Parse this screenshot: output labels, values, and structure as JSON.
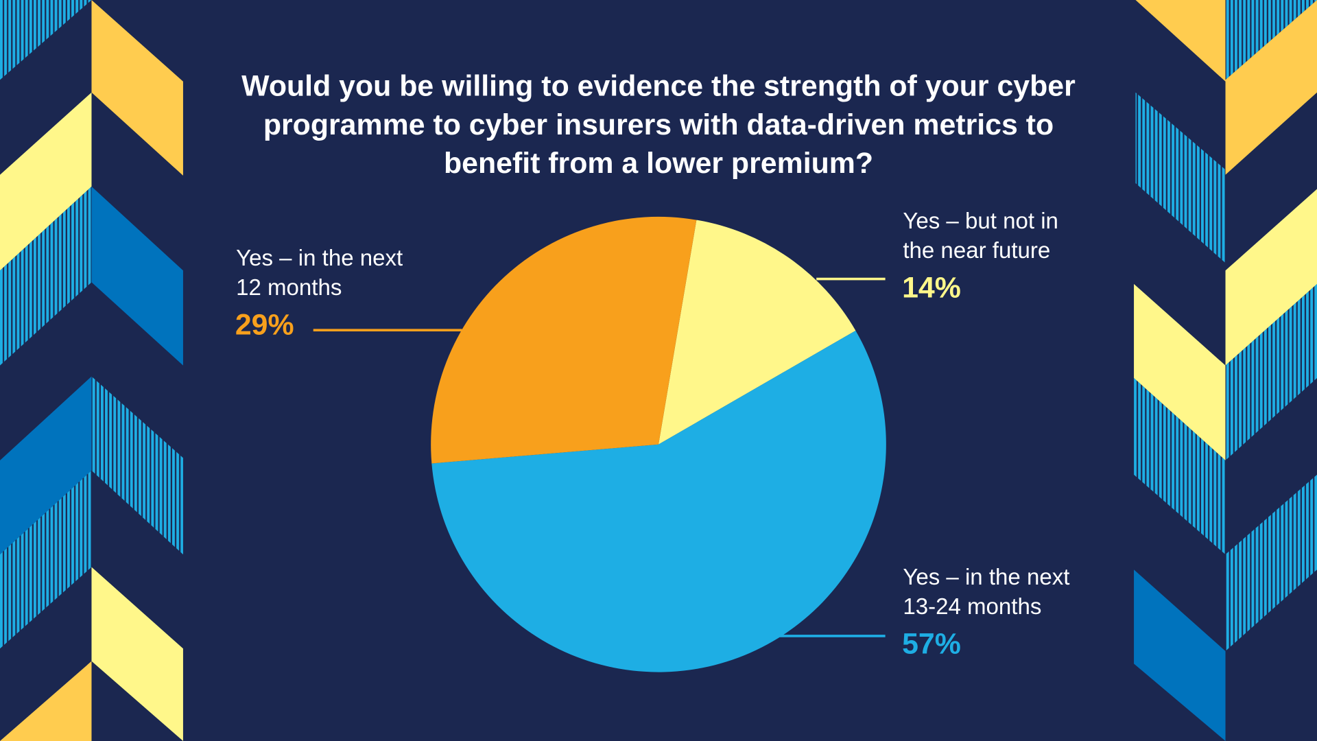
{
  "chart_data": {
    "type": "pie",
    "title": "Would you be willing to evidence the strength of your cyber programme to cyber insurers with data-driven metrics to benefit from a lower premium?",
    "title_lines": [
      "Would you be willing to evidence the strength of your cyber",
      "programme to cyber insurers with data-driven metrics to",
      "benefit from a lower premium?"
    ],
    "slices": [
      {
        "label": "Yes – but not in the near future",
        "label_lines": [
          "Yes – but not in",
          "the near future"
        ],
        "value": 14,
        "value_label": "14%",
        "color": "#fff78a"
      },
      {
        "label": "Yes – in the next 13-24 months",
        "label_lines": [
          "Yes – in the next",
          "13-24 months"
        ],
        "value": 57,
        "value_label": "57%",
        "color": "#1eaee4"
      },
      {
        "label": "Yes – in the next 12 months",
        "label_lines": [
          "Yes – in the next",
          "12 months"
        ],
        "value": 29,
        "value_label": "29%",
        "color": "#f8a01c"
      }
    ],
    "legend": "none"
  },
  "colors": {
    "background": "#1b2750",
    "gold": "#ffcc4f",
    "pale_yellow": "#fff78a",
    "sky_blue": "#1eaee4",
    "deep_blue": "#0073bd",
    "orange": "#f8a01c"
  }
}
